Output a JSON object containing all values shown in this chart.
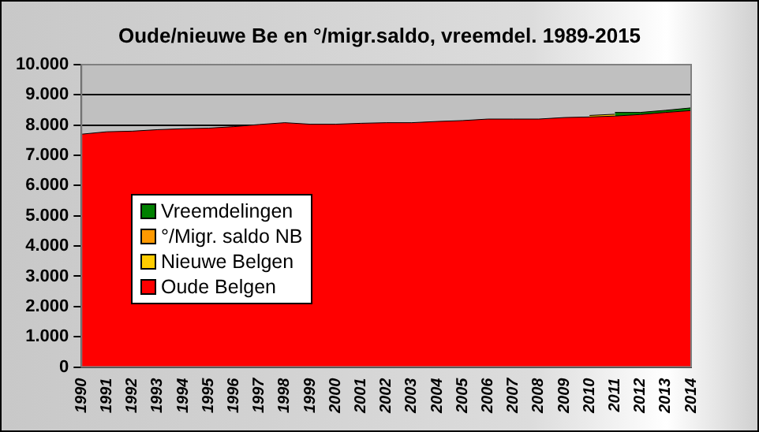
{
  "chart_data": {
    "type": "area",
    "title": "Oude/nieuwe Be en °/migr.saldo, vreemdel. 1989-2015",
    "stacked": true,
    "legend": "left",
    "grid": "y",
    "categories": [
      "1990",
      "1991",
      "1992",
      "1993",
      "1994",
      "1995",
      "1996",
      "1997",
      "1998",
      "1999",
      "2000",
      "2001",
      "2002",
      "2003",
      "2004",
      "2005",
      "2006",
      "2007",
      "2008",
      "2009",
      "2010",
      "2011",
      "2012",
      "2013",
      "2014"
    ],
    "ylim": [
      0,
      10000
    ],
    "yticks": [
      {
        "value": 0,
        "label": "0"
      },
      {
        "value": 1000,
        "label": "1.000"
      },
      {
        "value": 2000,
        "label": "2.000"
      },
      {
        "value": 3000,
        "label": "3.000"
      },
      {
        "value": 4000,
        "label": "4.000"
      },
      {
        "value": 5000,
        "label": "5.000"
      },
      {
        "value": 6000,
        "label": "6.000"
      },
      {
        "value": 7000,
        "label": "7.000"
      },
      {
        "value": 8000,
        "label": "8.000"
      },
      {
        "value": 9000,
        "label": "9.000"
      },
      {
        "value": 10000,
        "label": "10.000"
      }
    ],
    "series": [
      {
        "name": "Oude Belgen",
        "color": "#ff0000",
        "values": [
          7700,
          7780,
          7800,
          7850,
          7880,
          7900,
          7950,
          8020,
          8080,
          8030,
          8030,
          8060,
          8080,
          8080,
          8120,
          8150,
          8200,
          8200,
          8200,
          8250,
          8270,
          8300,
          8350,
          8420,
          8480
        ]
      },
      {
        "name": "Nieuwe Belgen",
        "color": "#ffcc00",
        "values": [
          null,
          null,
          null,
          null,
          null,
          null,
          null,
          null,
          null,
          null,
          null,
          null,
          null,
          null,
          null,
          null,
          null,
          null,
          null,
          null,
          50,
          60,
          null,
          null,
          null
        ]
      },
      {
        "name": "°/Migr. saldo NB",
        "color": "#ff9900",
        "values": [
          null,
          null,
          null,
          null,
          null,
          null,
          null,
          null,
          null,
          null,
          null,
          null,
          null,
          null,
          null,
          null,
          null,
          null,
          null,
          null,
          null,
          null,
          null,
          null,
          null
        ]
      },
      {
        "name": "Vreemdelingen",
        "color": "#008000",
        "values": [
          null,
          null,
          null,
          null,
          null,
          null,
          null,
          null,
          null,
          null,
          null,
          null,
          null,
          null,
          null,
          null,
          null,
          null,
          null,
          null,
          null,
          60,
          70,
          70,
          90
        ]
      }
    ]
  }
}
